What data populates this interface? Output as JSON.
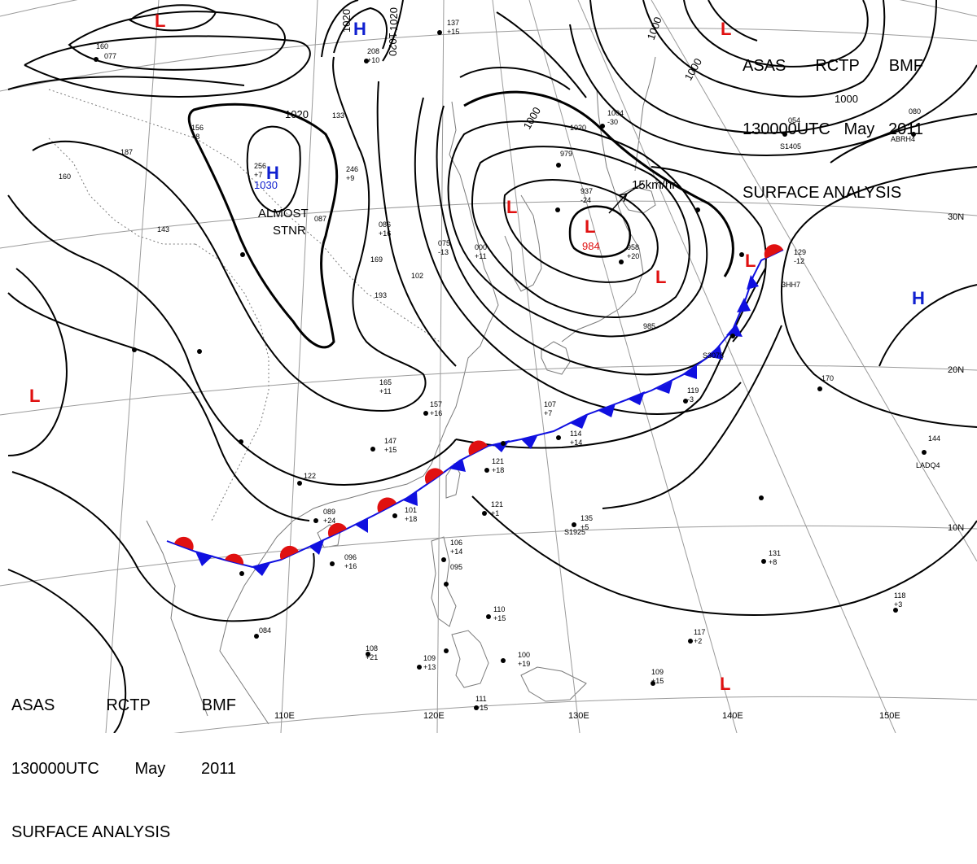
{
  "header_title": {
    "line1": [
      "ASAS",
      "RCTP",
      "BMF"
    ],
    "line2": [
      "130000UTC",
      "May",
      "2011"
    ],
    "line3": "SURFACE ANALYSIS"
  },
  "footer_title": {
    "line1": [
      "ASAS",
      "RCTP",
      "BMF"
    ],
    "line2": [
      "130000UTC",
      "May",
      "2011"
    ],
    "line3": "SURFACE ANALYSIS"
  },
  "colors": {
    "high": "#1020d0",
    "low": "#e01010",
    "cold_front": "#1010e0",
    "warm_front": "#e01010",
    "isobar": "#000000",
    "grid": "#9a9a9a",
    "coast": "#7a7a7a"
  },
  "longitude_labels": [
    "110E",
    "120E",
    "130E",
    "140E",
    "150E"
  ],
  "latitude_labels": [
    "30N",
    "20N",
    "10N"
  ],
  "isobar_labels": [
    "1020",
    "1020",
    "1020",
    "1020",
    "1030",
    "1000",
    "1000",
    "1000",
    "1000",
    "984"
  ],
  "pressure_centers": [
    {
      "type": "H",
      "value": "1030",
      "note": [
        "ALMOST",
        "STNR"
      ]
    },
    {
      "type": "H",
      "value": ""
    },
    {
      "type": "H",
      "value": ""
    },
    {
      "type": "L",
      "value": "984"
    },
    {
      "type": "L",
      "value": ""
    },
    {
      "type": "L",
      "value": ""
    },
    {
      "type": "L",
      "value": ""
    },
    {
      "type": "L",
      "value": ""
    },
    {
      "type": "L",
      "value": ""
    },
    {
      "type": "L",
      "value": ""
    },
    {
      "type": "L",
      "value": ""
    }
  ],
  "movement_label": "15km/hr",
  "station_samples": [
    "137",
    "+15",
    "208",
    "+10",
    "160",
    "077",
    "054",
    "080",
    "165",
    "+11",
    "157",
    "+16",
    "147",
    "+15",
    "122",
    "089",
    "+24",
    "096",
    "+16",
    "084",
    "108",
    "+21",
    "109",
    "+13",
    "111",
    "+15",
    "110",
    "+15",
    "100",
    "+19",
    "106",
    "+14",
    "095",
    "101",
    "+18",
    "121",
    "+1",
    "121",
    "+18",
    "135",
    "+5",
    "131",
    "+8",
    "117",
    "+2",
    "109",
    "+15",
    "118",
    "+3",
    "144",
    "129",
    "-12",
    "170",
    "119",
    "-3",
    "107",
    "+7",
    "114",
    "+14",
    "985",
    "958",
    "+20",
    "937",
    "-24",
    "979",
    "1020",
    "1004",
    "-30",
    "000",
    "+11",
    "075",
    "-13",
    "102",
    "133",
    "193",
    "169",
    "086",
    "+16",
    "087",
    "246",
    "+9",
    "256",
    "+7",
    "143",
    "160",
    "187",
    "156",
    "+8",
    "LADQ4",
    "S1925",
    "S3078",
    "ABRH4",
    "3HH7",
    "S1405"
  ]
}
